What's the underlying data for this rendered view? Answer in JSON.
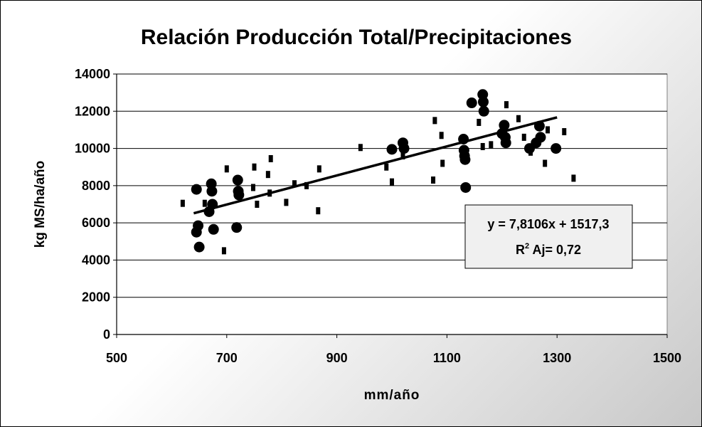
{
  "chart_data": {
    "type": "scatter",
    "title": "Relación Producción Total/Precipitaciones",
    "xlabel": "mm/año",
    "ylabel": "kg MS/ha/año",
    "xlim": [
      500,
      1500
    ],
    "ylim": [
      0,
      14000
    ],
    "x_ticks": [
      "500",
      "700",
      "900",
      "1100",
      "1300",
      "1500"
    ],
    "y_ticks": [
      "0",
      "2000",
      "4000",
      "6000",
      "8000",
      "10000",
      "12000",
      "14000"
    ],
    "grid": "horizontal",
    "trendline": {
      "type": "linear",
      "slope": 7.8106,
      "intercept": 1517.3,
      "x_range": [
        640,
        1300
      ],
      "equation_label": "y = 7,8106x + 1517,3",
      "r2_label": "R",
      "r2_sup": "2",
      "r2_value": " Aj= 0,72"
    },
    "series": [
      {
        "marker": "circle",
        "points": [
          [
            645,
            7800
          ],
          [
            645,
            5500
          ],
          [
            648,
            5850
          ],
          [
            650,
            4700
          ],
          [
            668,
            6600
          ],
          [
            672,
            8100
          ],
          [
            673,
            7700
          ],
          [
            674,
            7000
          ],
          [
            676,
            5650
          ],
          [
            718,
            5750
          ],
          [
            720,
            8300
          ],
          [
            721,
            7700
          ],
          [
            722,
            7500
          ],
          [
            1000,
            9950
          ],
          [
            1020,
            10300
          ],
          [
            1022,
            10000
          ],
          [
            1130,
            10500
          ],
          [
            1131,
            9900
          ],
          [
            1132,
            9600
          ],
          [
            1133,
            9400
          ],
          [
            1134,
            7900
          ],
          [
            1145,
            12450
          ],
          [
            1165,
            12900
          ],
          [
            1166,
            12500
          ],
          [
            1167,
            12000
          ],
          [
            1200,
            10800
          ],
          [
            1204,
            11250
          ],
          [
            1206,
            10600
          ],
          [
            1207,
            10300
          ],
          [
            1250,
            10000
          ],
          [
            1262,
            10300
          ],
          [
            1268,
            11200
          ],
          [
            1270,
            10600
          ],
          [
            1298,
            10000
          ]
        ]
      },
      {
        "marker": "square",
        "points": [
          [
            620,
            7050
          ],
          [
            660,
            7050
          ],
          [
            695,
            4500
          ],
          [
            700,
            8900
          ],
          [
            748,
            7900
          ],
          [
            750,
            9000
          ],
          [
            755,
            7000
          ],
          [
            775,
            8600
          ],
          [
            778,
            7600
          ],
          [
            780,
            9450
          ],
          [
            808,
            7100
          ],
          [
            823,
            8100
          ],
          [
            845,
            8000
          ],
          [
            866,
            6650
          ],
          [
            868,
            8900
          ],
          [
            943,
            10050
          ],
          [
            990,
            9000
          ],
          [
            1000,
            8200
          ],
          [
            1020,
            9600
          ],
          [
            1075,
            8300
          ],
          [
            1078,
            11500
          ],
          [
            1090,
            10700
          ],
          [
            1092,
            9200
          ],
          [
            1158,
            11400
          ],
          [
            1165,
            10100
          ],
          [
            1180,
            10200
          ],
          [
            1208,
            12350
          ],
          [
            1230,
            11600
          ],
          [
            1240,
            10600
          ],
          [
            1252,
            9800
          ],
          [
            1278,
            9200
          ],
          [
            1283,
            11000
          ],
          [
            1313,
            10900
          ],
          [
            1330,
            8400
          ]
        ]
      }
    ]
  }
}
